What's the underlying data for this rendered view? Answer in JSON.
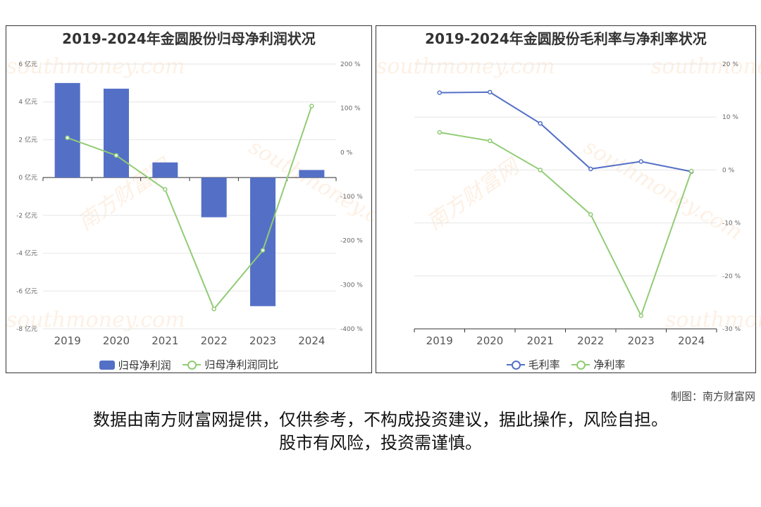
{
  "colors": {
    "bar": "#5470c6",
    "line_blue": "#5470c6",
    "line_green": "#91cc75"
  },
  "chart_data": [
    {
      "type": "bar",
      "title": "2019-2024年金圆股份归母净利润状况",
      "categories": [
        "2019",
        "2020",
        "2021",
        "2022",
        "2023",
        "2024"
      ],
      "series": [
        {
          "name": "归母净利润",
          "type": "bar",
          "axis": "left",
          "values": [
            5.0,
            4.7,
            0.8,
            -2.1,
            -6.8,
            0.4
          ]
        },
        {
          "name": "归母净利润同比",
          "type": "line",
          "axis": "right",
          "values": [
            33,
            -7,
            -84,
            -355,
            -222,
            105
          ]
        }
      ],
      "y_left": {
        "ylim": [
          -8,
          6
        ],
        "ticks": [
          6,
          4,
          2,
          0,
          -2,
          -4,
          -6,
          -8
        ],
        "tick_labels": [
          "6 亿元",
          "4 亿元",
          "2 亿元",
          "0 亿元",
          "-2 亿元",
          "-4 亿元",
          "-6 亿元",
          "-8 亿元"
        ]
      },
      "y_right": {
        "ylim": [
          -400,
          200
        ],
        "ticks": [
          200,
          100,
          0,
          -100,
          -200,
          -300,
          -400
        ],
        "tick_labels": [
          "200 %",
          "100 %",
          "0 %",
          "-100 %",
          "-200 %",
          "-300 %",
          "-400 %"
        ]
      },
      "legend": [
        "归母净利润",
        "归母净利润同比"
      ],
      "legend_position": "bottom"
    },
    {
      "type": "line",
      "title": "2019-2024年金圆股份毛利率与净利率状况",
      "categories": [
        "2019",
        "2020",
        "2021",
        "2022",
        "2023",
        "2024"
      ],
      "series": [
        {
          "name": "毛利率",
          "values": [
            14.6,
            14.7,
            8.8,
            0.2,
            1.6,
            -0.3
          ]
        },
        {
          "name": "净利率",
          "values": [
            7.1,
            5.5,
            0.0,
            -8.4,
            -27.5,
            -0.2
          ]
        }
      ],
      "y_right": {
        "ylim": [
          -30,
          20
        ],
        "ticks": [
          20,
          10,
          0,
          -10,
          -20,
          -30
        ],
        "tick_labels": [
          "20 %",
          "10 %",
          "0 %",
          "-10 %",
          "-20 %",
          "-30 %"
        ]
      },
      "legend": [
        "毛利率",
        "净利率"
      ],
      "legend_position": "bottom"
    }
  ],
  "watermark": {
    "cn": "南方财富网",
    "en": "southmoney.com"
  },
  "footer": {
    "credit": "制图：南方财富网",
    "disclaimer_line1": "数据由南方财富网提供，仅供参考，不构成投资建议，据此操作，风险自担。",
    "disclaimer_line2": "股市有风险，投资需谨慎。"
  }
}
